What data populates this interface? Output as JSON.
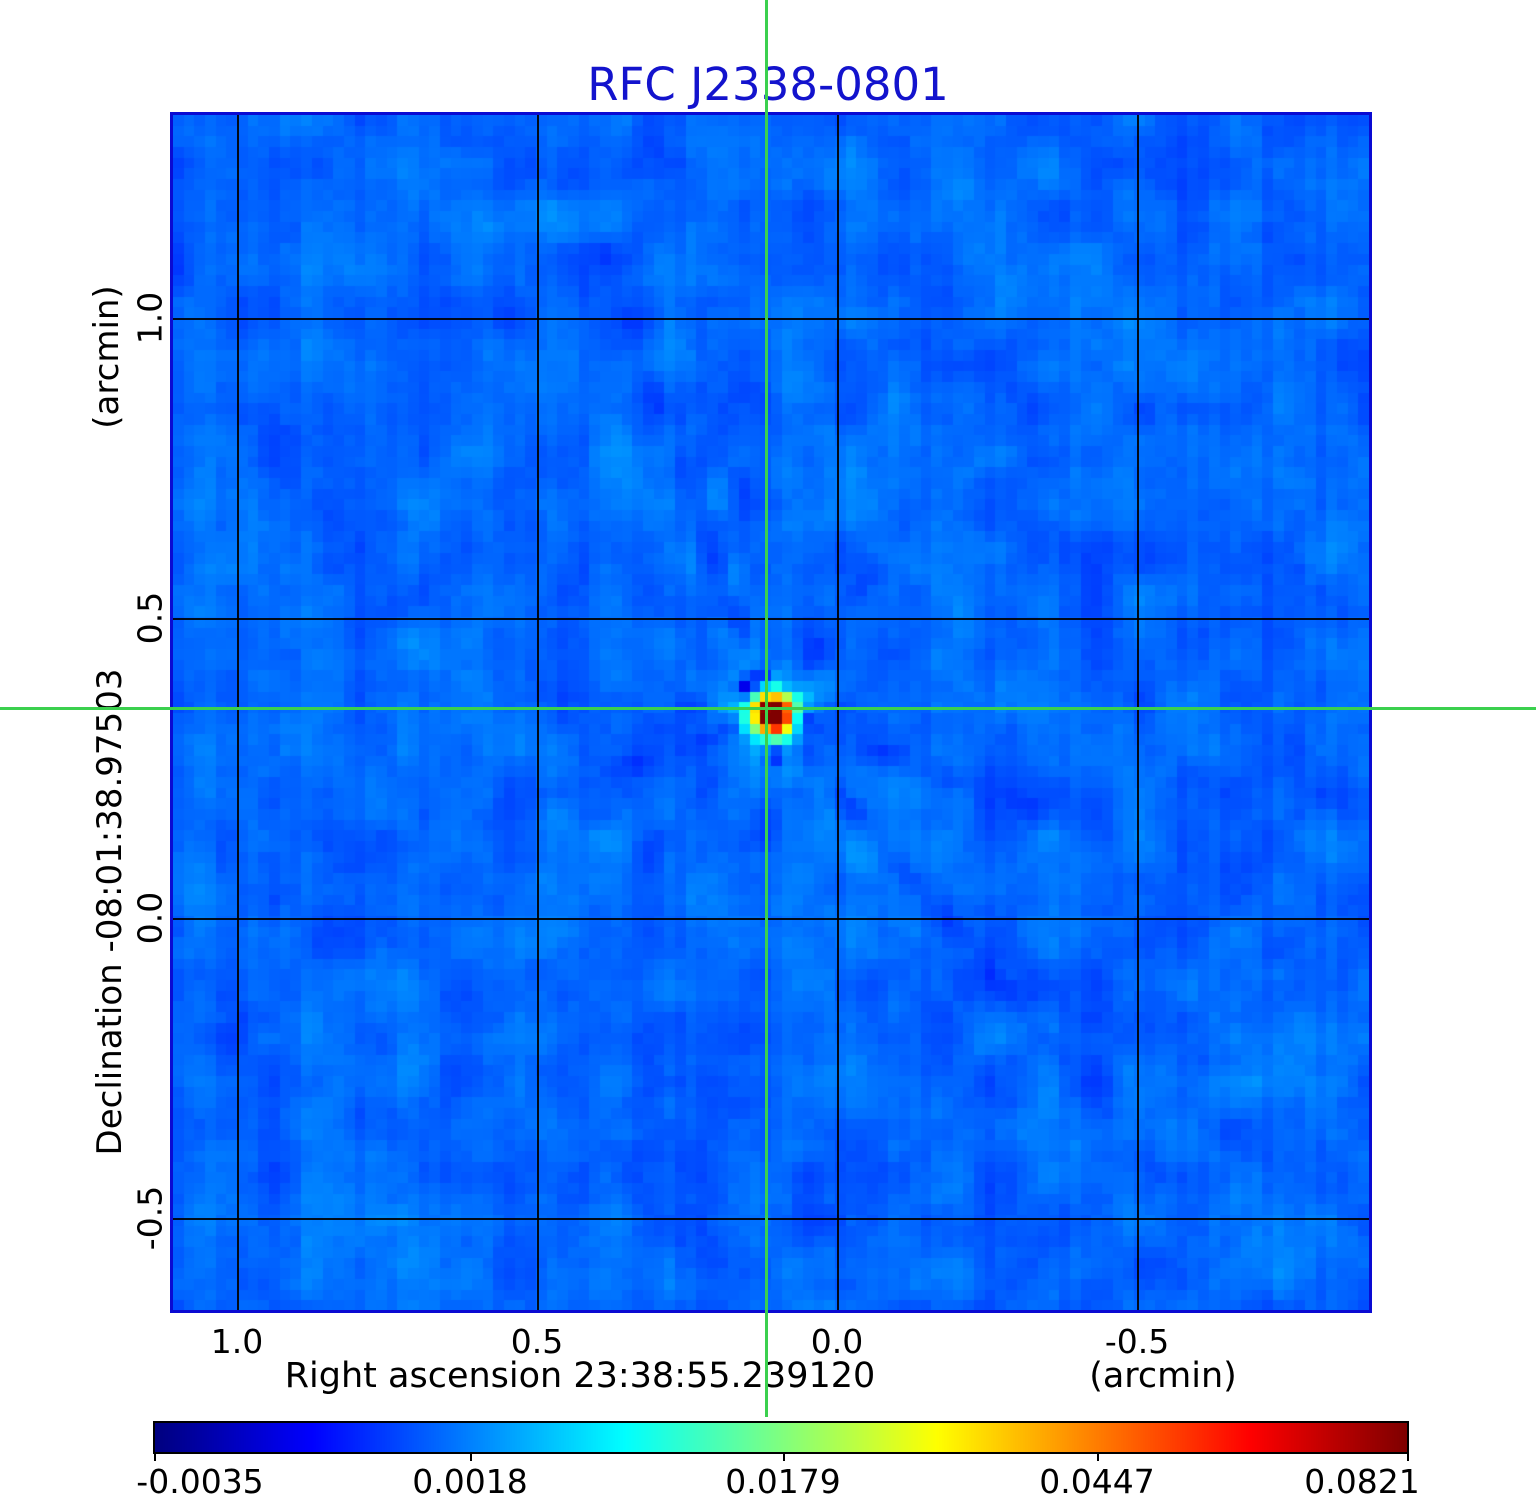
{
  "title": {
    "text": "RFC J2338-0801",
    "color": "#1313cd"
  },
  "y_axis": {
    "unit_label": "(arcmin)",
    "axis_label": "Declination  -08:01:38.97503",
    "ticks": [
      "1.0",
      "0.5",
      "0.0",
      "-0.5"
    ]
  },
  "x_axis": {
    "axis_label": "Right ascension  23:38:55.239120",
    "unit_label": "(arcmin)",
    "ticks": [
      "1.0",
      "0.5",
      "0.0",
      "-0.5"
    ]
  },
  "colorbar": {
    "colormap": "jet",
    "tick_labels": [
      "-0.0035",
      "0.0018",
      "0.0179",
      "0.0447",
      "0.0821"
    ]
  },
  "crosshair": {
    "color": "#3bd04e"
  },
  "frame_color": "#0a0ad2",
  "chart_data": {
    "type": "heatmap",
    "title": "RFC J2338-0801",
    "xlabel": "Right ascension  23:38:55.239120 (arcmin)",
    "ylabel": "Declination  -08:01:38.97503 (arcmin)",
    "x_ticks": [
      1.0,
      0.5,
      0.0,
      -0.5
    ],
    "y_ticks": [
      1.0,
      0.5,
      0.0,
      -0.5
    ],
    "xlim_arcmin": [
      1.107,
      -0.886
    ],
    "ylim_arcmin": [
      -0.653,
      1.338
    ],
    "grid": true,
    "colormap": "jet",
    "value_scale": "sqrt",
    "colorbar_ticks": [
      -0.0035,
      0.0018,
      0.0179,
      0.0447,
      0.0821
    ],
    "value_range": [
      -0.0035,
      0.0821
    ],
    "background_level": 0.0008,
    "noise_rms": 0.0012,
    "source": {
      "ra_offset_arcmin": 0.116,
      "dec_offset_arcmin": 0.348,
      "peak_value": 0.0821,
      "core_sigma_arcmin": 0.024,
      "halo_sigma_arcmin": 0.057
    },
    "crosshair_at_source": true,
    "map_pixels": 112,
    "sidelobe_streaks": [
      {
        "angle_deg": 250,
        "length_arcmin": 0.85,
        "kind": "dark"
      },
      {
        "angle_deg": 256,
        "length_arcmin": 0.82,
        "kind": "bright"
      },
      {
        "angle_deg": 50,
        "length_arcmin": 0.95,
        "kind": "dark"
      },
      {
        "angle_deg": 58,
        "length_arcmin": 0.55,
        "kind": "bright"
      },
      {
        "angle_deg": 262,
        "length_arcmin": 0.3,
        "kind": "dark"
      },
      {
        "angle_deg": 93,
        "length_arcmin": 0.27,
        "kind": "dark"
      },
      {
        "angle_deg": 185,
        "length_arcmin": 0.22,
        "kind": "dark"
      },
      {
        "angle_deg": 355,
        "length_arcmin": 0.16,
        "kind": "dark"
      },
      {
        "angle_deg": 132,
        "length_arcmin": 0.4,
        "kind": "dark"
      },
      {
        "angle_deg": 305,
        "length_arcmin": 0.36,
        "kind": "dark"
      },
      {
        "angle_deg": 68,
        "length_arcmin": 0.18,
        "kind": "bright"
      },
      {
        "angle_deg": 240,
        "length_arcmin": 0.7,
        "kind": "bright"
      },
      {
        "angle_deg": 160,
        "length_arcmin": 0.5,
        "kind": "dark"
      },
      {
        "angle_deg": 20,
        "length_arcmin": 0.45,
        "kind": "dark"
      }
    ],
    "negative_sidelobe_spots": [
      {
        "dx_arcmin": -0.044,
        "dy_arcmin": -0.044,
        "depth": 0.22
      },
      {
        "dx_arcmin": -0.018,
        "dy_arcmin": -0.062,
        "depth": 0.12
      },
      {
        "dx_arcmin": 0.009,
        "dy_arcmin": 0.068,
        "depth": 0.12
      },
      {
        "dx_arcmin": 0.053,
        "dy_arcmin": 0.005,
        "depth": 0.1
      },
      {
        "dx_arcmin": -0.071,
        "dy_arcmin": 0.018,
        "depth": 0.08
      },
      {
        "dx_arcmin": 0.027,
        "dy_arcmin": -0.05,
        "depth": 0.1
      }
    ]
  }
}
